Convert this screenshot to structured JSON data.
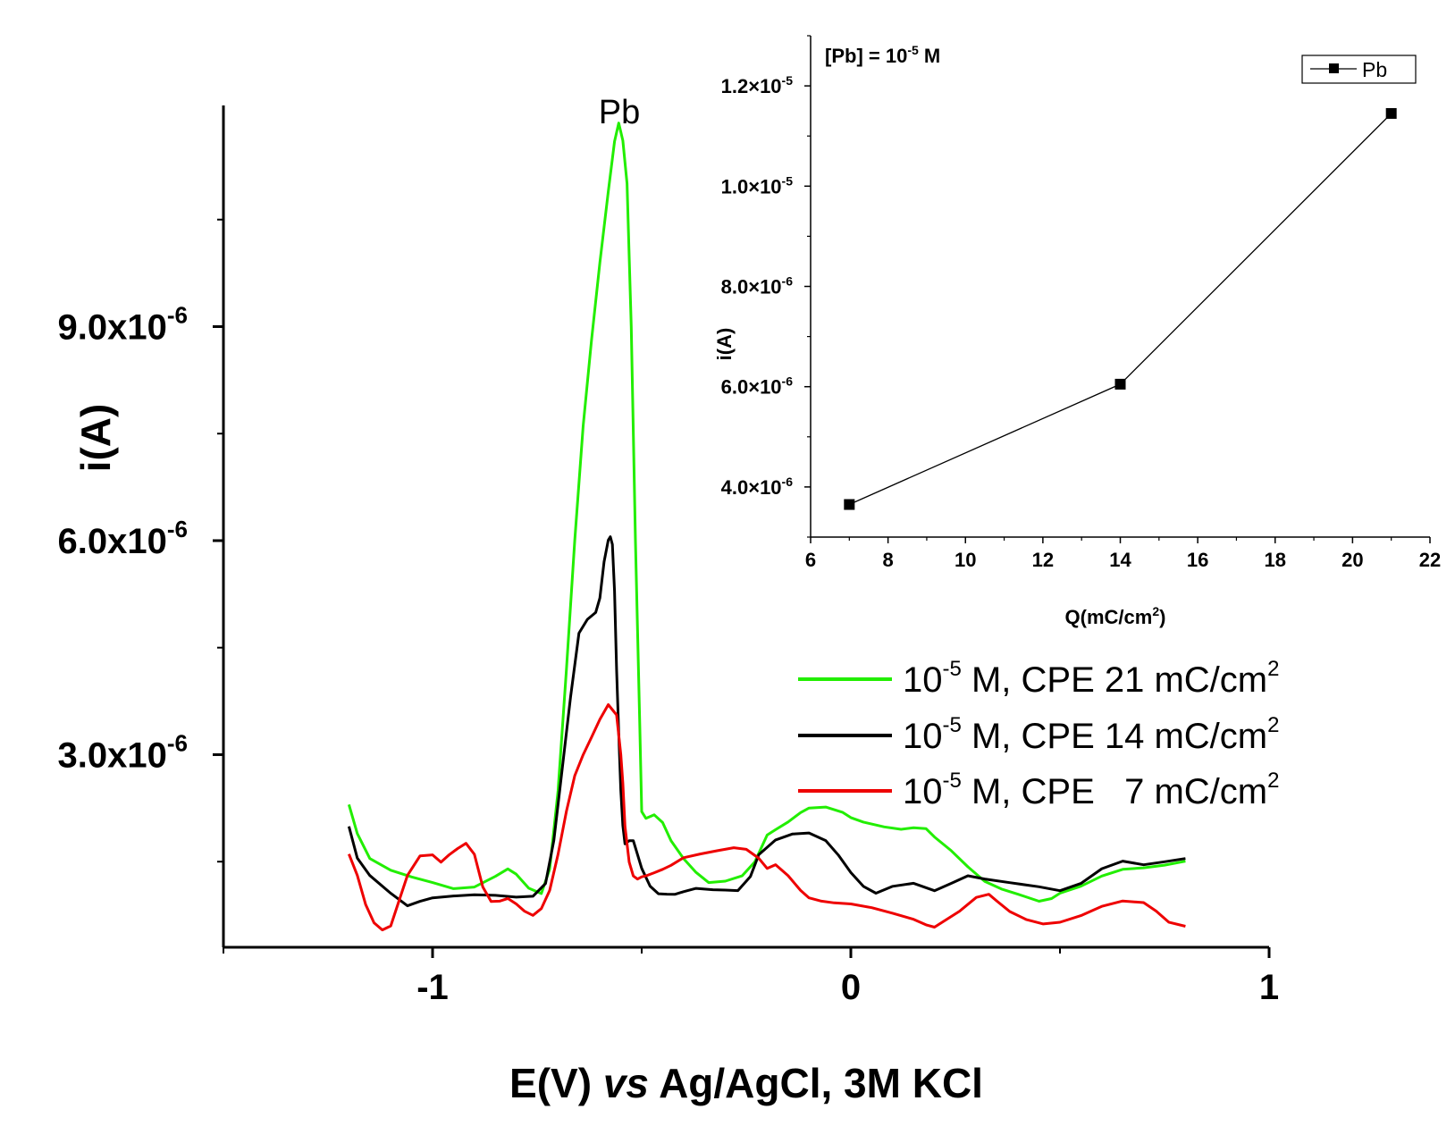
{
  "chart_data": [
    {
      "type": "line",
      "role": "main",
      "xlabel": {
        "main": "E(V) ",
        "italic": "vs",
        "rest": " Ag/AgCl, 3M KCl"
      },
      "ylabel": "i(A)",
      "xlim": [
        -1.5,
        1.0
      ],
      "ylim": [
        3e-07,
        1.21e-05
      ],
      "x_ticks": [
        {
          "value": -1,
          "label": "-1"
        },
        {
          "value": 0,
          "label": "0"
        },
        {
          "value": 1,
          "label": "1"
        }
      ],
      "y_ticks": [
        {
          "value": 3e-06,
          "mantissa": "3.0x10",
          "exponent": "-6"
        },
        {
          "value": 6e-06,
          "mantissa": "6.0x10",
          "exponent": "-6"
        },
        {
          "value": 9e-06,
          "mantissa": "9.0x10",
          "exponent": "-6"
        }
      ],
      "annotation": {
        "text": "Pb",
        "x": -0.55,
        "y": 1.18e-05
      },
      "legend": {
        "position": "right",
        "entries": [
          {
            "pre": "10",
            "sup": "-5",
            "mid": " M, CPE 21 mC/cm",
            "post": "2",
            "color": "#22ee00"
          },
          {
            "pre": "10",
            "sup": "-5",
            "mid": " M, CPE 14 mC/cm",
            "post": "2",
            "color": "#000000"
          },
          {
            "pre": "10",
            "sup": "-5",
            "mid": " M, CPE   7 mC/cm",
            "post": "2",
            "color": "#ee0000"
          }
        ]
      },
      "series": [
        {
          "name": "21 mC/cm2",
          "color": "#22ee00",
          "x": [
            -1.2,
            -1.18,
            -1.15,
            -1.1,
            -1.05,
            -1.0,
            -0.95,
            -0.9,
            -0.85,
            -0.82,
            -0.8,
            -0.77,
            -0.74,
            -0.72,
            -0.7,
            -0.68,
            -0.66,
            -0.64,
            -0.62,
            -0.6,
            -0.58,
            -0.565,
            -0.555,
            -0.545,
            -0.535,
            -0.525,
            -0.515,
            -0.505,
            -0.5,
            -0.49,
            -0.47,
            -0.45,
            -0.43,
            -0.4,
            -0.37,
            -0.34,
            -0.3,
            -0.26,
            -0.23,
            -0.2,
            -0.18,
            -0.15,
            -0.12,
            -0.1,
            -0.06,
            -0.02,
            0.0,
            0.03,
            0.08,
            0.12,
            0.15,
            0.18,
            0.2,
            0.24,
            0.28,
            0.32,
            0.36,
            0.4,
            0.45,
            0.48,
            0.5,
            0.55,
            0.6,
            0.65,
            0.7,
            0.75,
            0.8
          ],
          "y": [
            2.3e-06,
            1.9e-06,
            1.55e-06,
            1.38e-06,
            1.28e-06,
            1.2e-06,
            1.12e-06,
            1.15e-06,
            1.3e-06,
            1.4e-06,
            1.32e-06,
            1.12e-06,
            1.05e-06,
            1.4e-06,
            2.5e-06,
            4.2e-06,
            6e-06,
            7.6e-06,
            8.8e-06,
            9.9e-06,
            1.09e-05,
            1.16e-05,
            1.185e-05,
            1.16e-05,
            1.1e-05,
            9e-06,
            6e-06,
            3.5e-06,
            2.2e-06,
            2.1e-06,
            2.15e-06,
            2.05e-06,
            1.8e-06,
            1.55e-06,
            1.35e-06,
            1.2e-06,
            1.22e-06,
            1.3e-06,
            1.5e-06,
            1.88e-06,
            1.95e-06,
            2.05e-06,
            2.18e-06,
            2.25e-06,
            2.27e-06,
            2.2e-06,
            2.12e-06,
            2.05e-06,
            1.98e-06,
            1.95e-06,
            1.98e-06,
            1.97e-06,
            1.85e-06,
            1.65e-06,
            1.42e-06,
            1.22e-06,
            1.12e-06,
            1.05e-06,
            9.5e-07,
            9.8e-07,
            1.05e-06,
            1.15e-06,
            1.3e-06,
            1.4e-06,
            1.42e-06,
            1.45e-06,
            1.5e-06
          ]
        },
        {
          "name": "14 mC/cm2",
          "color": "#000000",
          "x": [
            -1.2,
            -1.18,
            -1.15,
            -1.1,
            -1.06,
            -1.03,
            -1.0,
            -0.95,
            -0.9,
            -0.85,
            -0.8,
            -0.76,
            -0.73,
            -0.71,
            -0.69,
            -0.67,
            -0.65,
            -0.63,
            -0.61,
            -0.6,
            -0.59,
            -0.58,
            -0.575,
            -0.57,
            -0.565,
            -0.56,
            -0.555,
            -0.55,
            -0.545,
            -0.54,
            -0.53,
            -0.52,
            -0.51,
            -0.5,
            -0.48,
            -0.46,
            -0.44,
            -0.42,
            -0.4,
            -0.37,
            -0.33,
            -0.3,
            -0.27,
            -0.24,
            -0.22,
            -0.18,
            -0.14,
            -0.1,
            -0.06,
            -0.03,
            0.0,
            0.03,
            0.06,
            0.1,
            0.15,
            0.2,
            0.24,
            0.28,
            0.32,
            0.38,
            0.45,
            0.5,
            0.55,
            0.6,
            0.65,
            0.7,
            0.75,
            0.8
          ],
          "y": [
            2e-06,
            1.55e-06,
            1.3e-06,
            1.05e-06,
            8.8e-07,
            9.5e-07,
            1e-06,
            1.02e-06,
            1.03e-06,
            1.02e-06,
            1e-06,
            1.02e-06,
            1.2e-06,
            1.8e-06,
            2.8e-06,
            3.8e-06,
            4.7e-06,
            4.9e-06,
            5e-06,
            5.2e-06,
            5.7e-06,
            6e-06,
            6.05e-06,
            5.95e-06,
            5.3e-06,
            4.2e-06,
            3.3e-06,
            2.5e-06,
            2e-06,
            1.75e-06,
            1.8e-06,
            1.8e-06,
            1.6e-06,
            1.4e-06,
            1.15e-06,
            1.05e-06,
            1.05e-06,
            1.05e-06,
            1.08e-06,
            1.12e-06,
            1.1e-06,
            1.1e-06,
            1.1e-06,
            1.3e-06,
            1.6e-06,
            1.8e-06,
            1.88e-06,
            1.9e-06,
            1.8e-06,
            1.6e-06,
            1.35e-06,
            1.15e-06,
            1.05e-06,
            1.15e-06,
            1.2e-06,
            1.1e-06,
            1.2e-06,
            1.3e-06,
            1.25e-06,
            1.2e-06,
            1.15e-06,
            1.1e-06,
            1.2e-06,
            1.4e-06,
            1.5e-06,
            1.45e-06,
            1.5e-06,
            1.55e-06
          ]
        },
        {
          "name": "7 mC/cm2",
          "color": "#ee0000",
          "x": [
            -1.2,
            -1.18,
            -1.16,
            -1.14,
            -1.12,
            -1.1,
            -1.08,
            -1.06,
            -1.03,
            -1.0,
            -0.98,
            -0.96,
            -0.94,
            -0.92,
            -0.9,
            -0.88,
            -0.86,
            -0.84,
            -0.82,
            -0.8,
            -0.78,
            -0.76,
            -0.74,
            -0.72,
            -0.7,
            -0.68,
            -0.66,
            -0.64,
            -0.62,
            -0.6,
            -0.58,
            -0.56,
            -0.55,
            -0.545,
            -0.54,
            -0.53,
            -0.52,
            -0.51,
            -0.5,
            -0.49,
            -0.47,
            -0.45,
            -0.43,
            -0.4,
            -0.36,
            -0.32,
            -0.28,
            -0.25,
            -0.22,
            -0.2,
            -0.18,
            -0.15,
            -0.12,
            -0.1,
            -0.07,
            -0.04,
            0.0,
            0.05,
            0.1,
            0.15,
            0.18,
            0.2,
            0.22,
            0.26,
            0.3,
            0.33,
            0.35,
            0.38,
            0.42,
            0.46,
            0.5,
            0.55,
            0.6,
            0.65,
            0.7,
            0.73,
            0.76,
            0.8
          ],
          "y": [
            1.6e-06,
            1.3e-06,
            9e-07,
            6.5e-07,
            5.5e-07,
            6e-07,
            9.5e-07,
            1.3e-06,
            1.58e-06,
            1.6e-06,
            1.5e-06,
            1.6e-06,
            1.68e-06,
            1.75e-06,
            1.6e-06,
            1.15e-06,
            9.5e-07,
            9.5e-07,
            9.8e-07,
            9e-07,
            8e-07,
            7.5e-07,
            8.5e-07,
            1.1e-06,
            1.6e-06,
            2.2e-06,
            2.7e-06,
            3e-06,
            3.25e-06,
            3.5e-06,
            3.7e-06,
            3.55e-06,
            3e-06,
            2.6e-06,
            2e-06,
            1.5e-06,
            1.3e-06,
            1.25e-06,
            1.28e-06,
            1.3e-06,
            1.35e-06,
            1.4e-06,
            1.45e-06,
            1.55e-06,
            1.6e-06,
            1.65e-06,
            1.7e-06,
            1.68e-06,
            1.55e-06,
            1.4e-06,
            1.45e-06,
            1.3e-06,
            1.1e-06,
            1e-06,
            9.5e-07,
            9.2e-07,
            9e-07,
            8.5e-07,
            7.8e-07,
            7e-07,
            6.2e-07,
            5.8e-07,
            6.5e-07,
            8e-07,
            1e-06,
            1.05e-06,
            9.5e-07,
            8e-07,
            6.8e-07,
            6.2e-07,
            6.5e-07,
            7.5e-07,
            8.8e-07,
            9.5e-07,
            9.2e-07,
            8e-07,
            6.5e-07,
            6e-07
          ]
        }
      ]
    },
    {
      "type": "line",
      "role": "inset",
      "annotation": {
        "pre": "[Pb] = 10",
        "sup": "-5",
        "post": " M"
      },
      "xlabel": {
        "pre": "Q(mC/cm",
        "sup": "2",
        "post": ")"
      },
      "ylabel": "i(A)",
      "xlim": [
        6,
        22
      ],
      "ylim": [
        3e-06,
        1.3e-05
      ],
      "x_ticks": [
        6,
        8,
        10,
        12,
        14,
        16,
        18,
        20,
        22
      ],
      "y_ticks": [
        {
          "value": 4e-06,
          "mantissa": "4.0×10",
          "exponent": "-6"
        },
        {
          "value": 6e-06,
          "mantissa": "6.0×10",
          "exponent": "-6"
        },
        {
          "value": 8e-06,
          "mantissa": "8.0×10",
          "exponent": "-6"
        },
        {
          "value": 1e-05,
          "mantissa": "1.0×10",
          "exponent": "-5"
        },
        {
          "value": 1.2e-05,
          "mantissa": "1.2×10",
          "exponent": "-5"
        }
      ],
      "legend": {
        "label": "Pb",
        "position": "top-right"
      },
      "series": [
        {
          "name": "Pb",
          "color": "#000000",
          "x": [
            7,
            14,
            21
          ],
          "y": [
            3.65e-06,
            6.05e-06,
            1.145e-05
          ]
        }
      ]
    }
  ]
}
